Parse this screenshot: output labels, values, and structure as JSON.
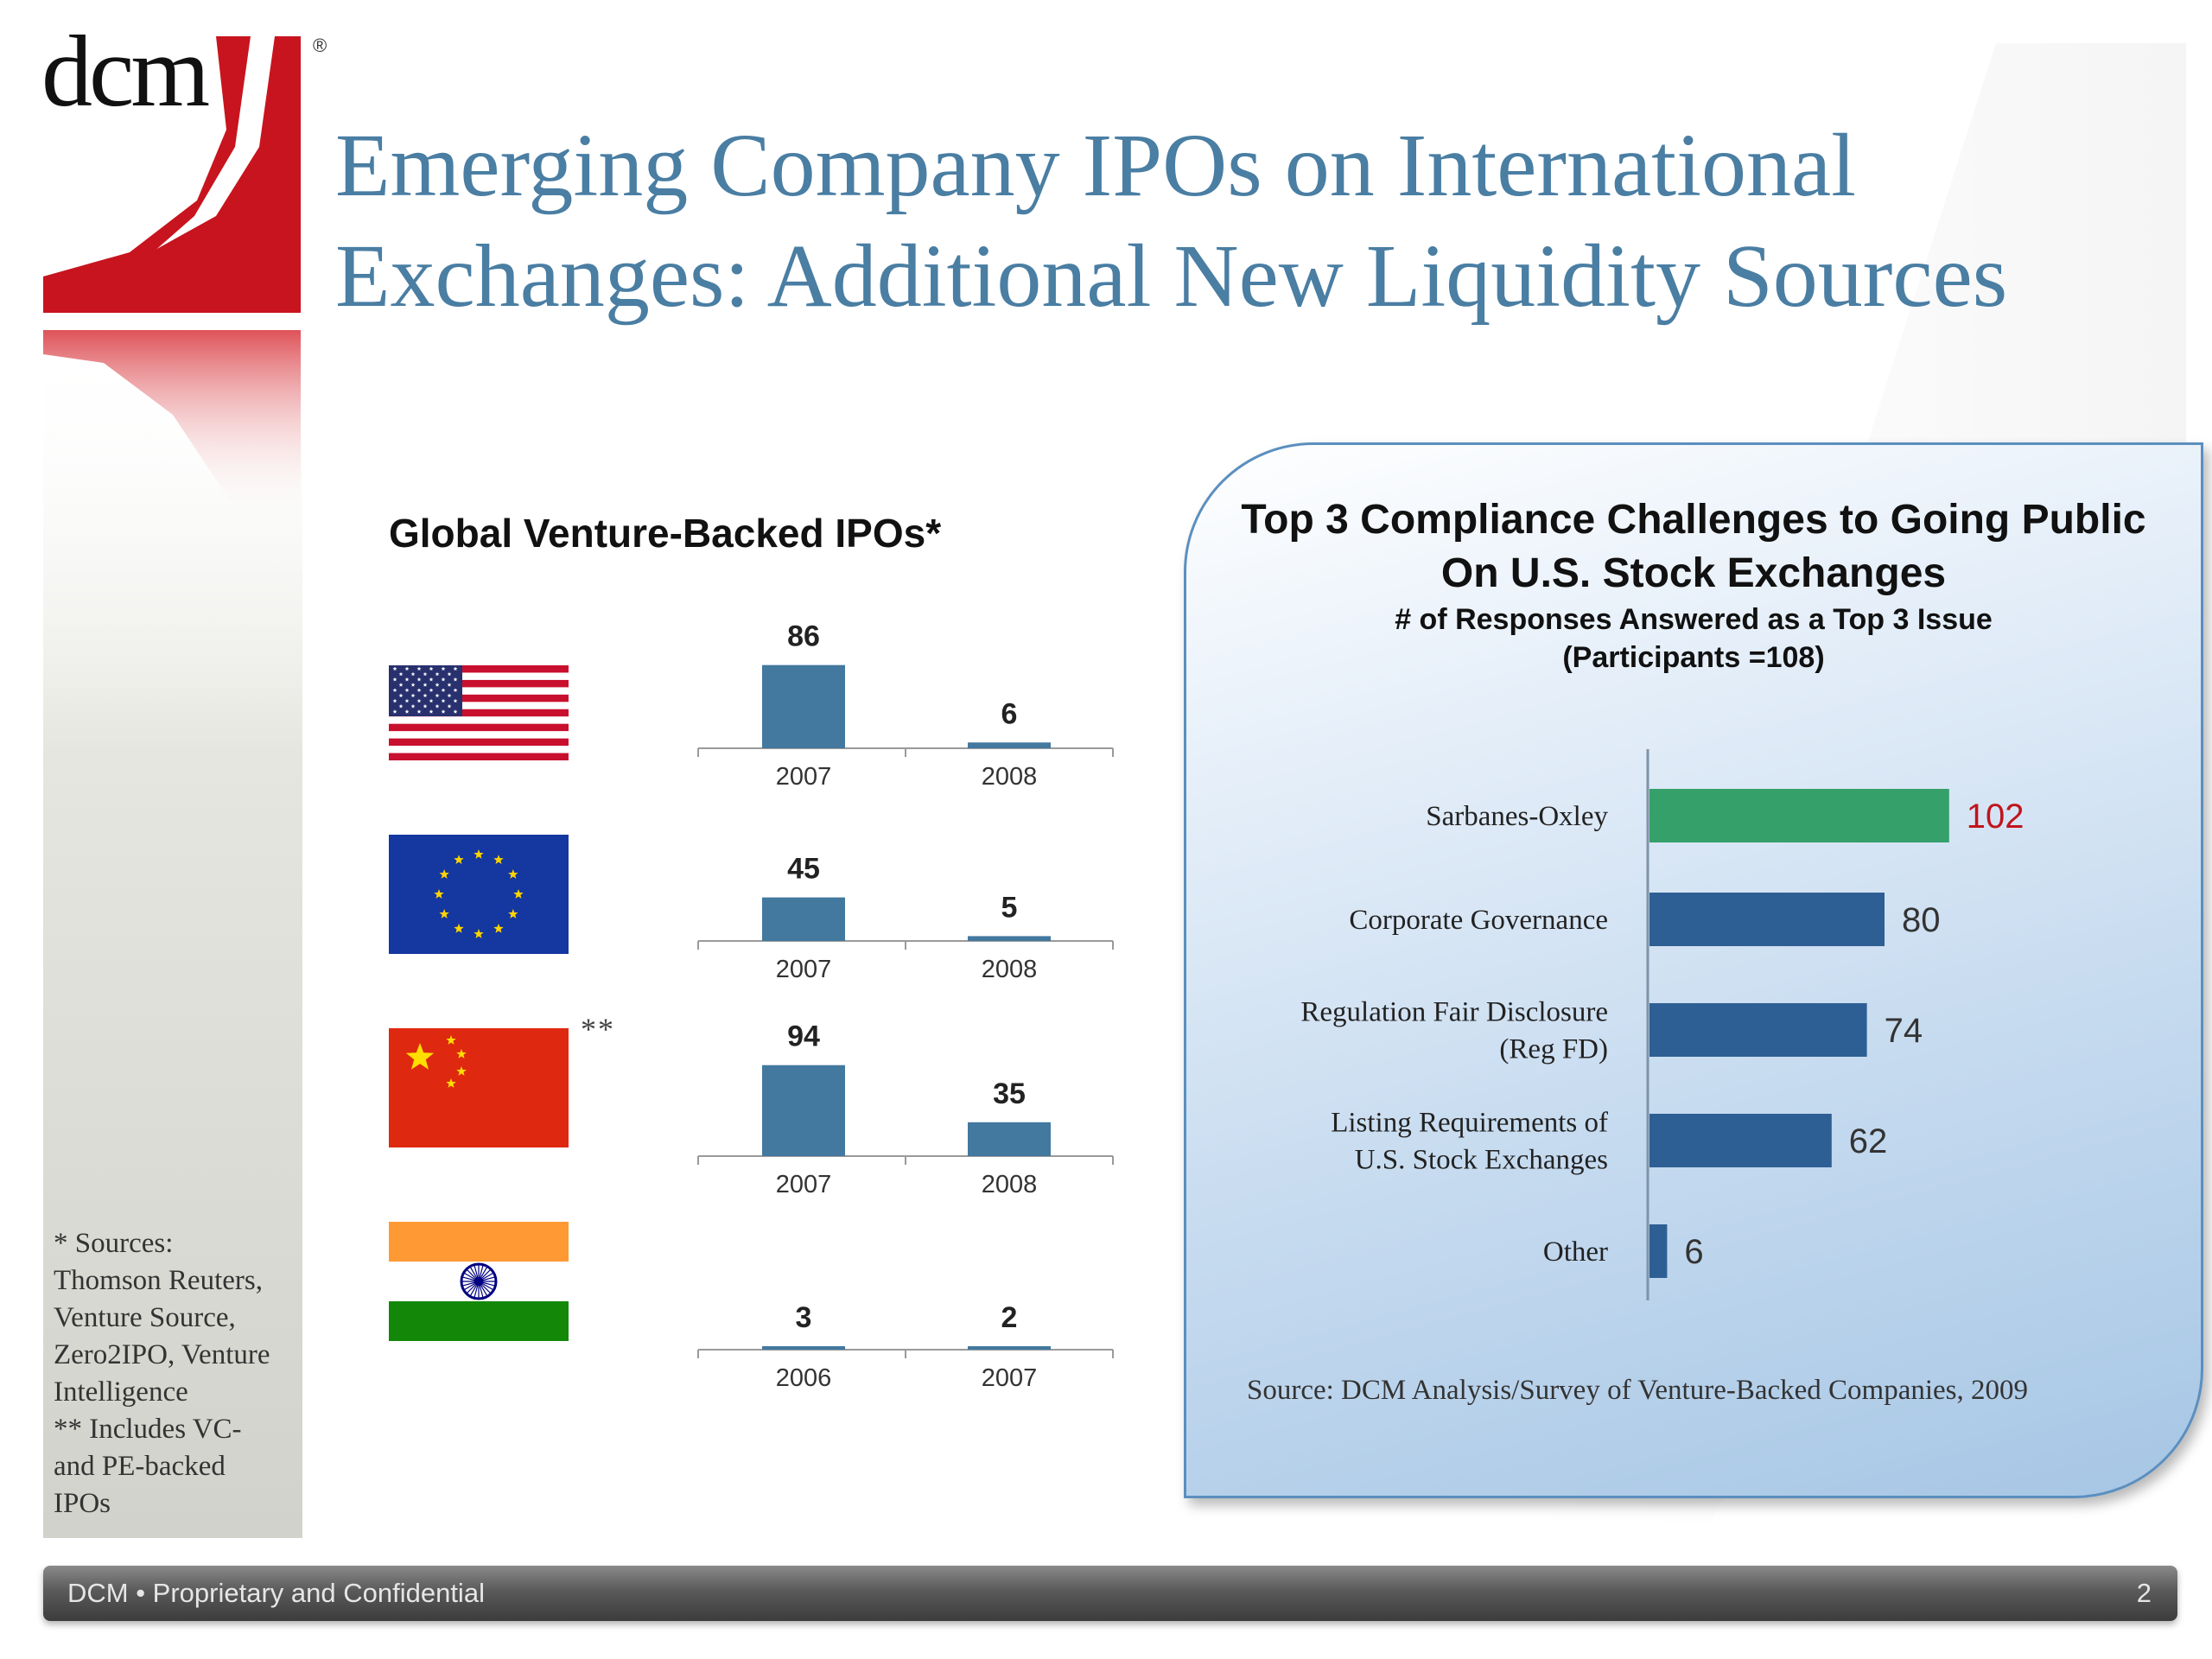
{
  "logo": {
    "text": "dcm",
    "mark": "®",
    "colors": {
      "red": "#c8141e"
    }
  },
  "title_line1": "Emerging Company IPOs on International",
  "title_line2": "Exchanges: Additional New Liquidity Sources",
  "left_chart": {
    "title": "Global Venture-Backed IPOs*",
    "china_note": "**",
    "flags": [
      "us-flag",
      "eu-flag",
      "china-flag",
      "india-flag"
    ]
  },
  "sources_lines": [
    "* Sources:",
    "Thomson Reuters,",
    "Venture Source,",
    "Zero2IPO, Venture",
    "Intelligence",
    "** Includes VC-",
    "and PE-backed",
    "IPOs"
  ],
  "panel": {
    "title_line1": "Top 3 Compliance Challenges to Going Public",
    "title_line2": "On U.S. Stock Exchanges",
    "subtitle_line1": "# of Responses Answered as a Top 3 Issue",
    "subtitle_line2": "(Participants =108)",
    "source": "Source: DCM Analysis/Survey of Venture-Backed Companies, 2009"
  },
  "footer": {
    "text": "DCM • Proprietary and Confidential",
    "page": "2"
  },
  "chart_data": [
    {
      "type": "bar",
      "region": "United States",
      "categories": [
        "2007",
        "2008"
      ],
      "values": [
        86,
        6
      ],
      "ylim": [
        0,
        100
      ],
      "color": "#43789f"
    },
    {
      "type": "bar",
      "region": "European Union",
      "categories": [
        "2007",
        "2008"
      ],
      "values": [
        45,
        5
      ],
      "ylim": [
        0,
        100
      ],
      "color": "#43789f"
    },
    {
      "type": "bar",
      "region": "China",
      "categories": [
        "2007",
        "2008"
      ],
      "values": [
        94,
        35
      ],
      "ylim": [
        0,
        100
      ],
      "color": "#43789f"
    },
    {
      "type": "bar",
      "region": "India",
      "categories": [
        "2006",
        "2007"
      ],
      "values": [
        3,
        2
      ],
      "ylim": [
        0,
        100
      ],
      "color": "#43789f"
    },
    {
      "type": "bar",
      "orientation": "horizontal",
      "title": "Top 3 Compliance Challenges to Going Public On U.S. Stock Exchanges",
      "categories": [
        [
          "Sarbanes-Oxley"
        ],
        [
          "Corporate Governance"
        ],
        [
          "Regulation Fair Disclosure",
          "(Reg FD)"
        ],
        [
          "Listing Requirements of",
          "U.S. Stock Exchanges"
        ],
        [
          "Other"
        ]
      ],
      "values": [
        102,
        80,
        74,
        62,
        6
      ],
      "xlim": [
        0,
        108
      ],
      "colors": [
        "#35a06a",
        "#2e5f94",
        "#2e5f94",
        "#2e5f94",
        "#2e5f94"
      ],
      "label_colors": [
        "#c0141c",
        "#333333",
        "#333333",
        "#333333",
        "#333333"
      ]
    }
  ]
}
